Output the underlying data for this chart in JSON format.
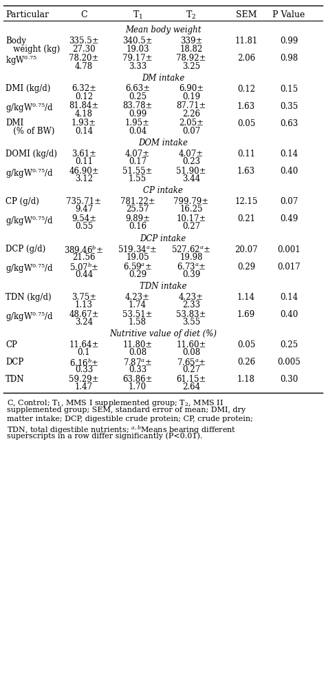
{
  "headers": [
    "Particular",
    "C",
    "T$_1$",
    "T$_2$",
    "SEM",
    "P Value"
  ],
  "sections": [
    {
      "section_title": "Mean body weight",
      "rows": [
        {
          "col0": [
            "Body",
            "   weight (kg)"
          ],
          "col1": [
            "335.5±",
            "27.30"
          ],
          "col2": [
            "340.5±",
            "19.03"
          ],
          "col3": [
            "339±",
            "18.82"
          ],
          "col4": "11.81",
          "col5": "0.99"
        },
        {
          "col0": [
            "kgW$^{0.75}$",
            ""
          ],
          "col1": [
            "78.20±",
            "4.78"
          ],
          "col2": [
            "79.17±",
            "3.33"
          ],
          "col3": [
            "78.92±",
            "3.25"
          ],
          "col4": "2.06",
          "col5": "0.98"
        }
      ]
    },
    {
      "section_title": "DM intake",
      "rows": [
        {
          "col0": [
            "DMI (kg/d)",
            ""
          ],
          "col1": [
            "6.32±",
            "0.12"
          ],
          "col2": [
            "6.63±",
            "0.25"
          ],
          "col3": [
            "6.90±",
            "0.19"
          ],
          "col4": "0.12",
          "col5": "0.15"
        },
        {
          "col0": [
            "g/kgW$^{0.75}$/d",
            ""
          ],
          "col1": [
            "81.84±",
            "4.18"
          ],
          "col2": [
            "83.78±",
            "0.99"
          ],
          "col3": [
            "87.71±",
            "2.26"
          ],
          "col4": "1.63",
          "col5": "0.35"
        },
        {
          "col0": [
            "DMI",
            "   (% of BW)"
          ],
          "col1": [
            "1.93±",
            "0.14"
          ],
          "col2": [
            "1.95±",
            "0.04"
          ],
          "col3": [
            "2.05±",
            "0.07"
          ],
          "col4": "0.05",
          "col5": "0.63"
        }
      ]
    },
    {
      "section_title": "DOM intake",
      "rows": [
        {
          "col0": [
            "DOMI (kg/d)",
            ""
          ],
          "col1": [
            "3.61±",
            "0.11"
          ],
          "col2": [
            "4.07±",
            "0.17"
          ],
          "col3": [
            "4.07±",
            "0.23"
          ],
          "col4": "0.11",
          "col5": "0.14"
        },
        {
          "col0": [
            "g/kgW$^{0.75}$/d",
            ""
          ],
          "col1": [
            "46.90±",
            "3.12"
          ],
          "col2": [
            "51.55±",
            "1.55"
          ],
          "col3": [
            "51.90±",
            "3.44"
          ],
          "col4": "1.63",
          "col5": "0.40"
        }
      ]
    },
    {
      "section_title": "CP intake",
      "rows": [
        {
          "col0": [
            "CP (g/d)",
            ""
          ],
          "col1": [
            "735.71±",
            "9.47"
          ],
          "col2": [
            "781.22±",
            "25.57"
          ],
          "col3": [
            "799.79±",
            "16.25"
          ],
          "col4": "12.15",
          "col5": "0.07"
        },
        {
          "col0": [
            "g/kgW$^{0.75}$/d",
            ""
          ],
          "col1": [
            "9.54±",
            "0.55"
          ],
          "col2": [
            "9.89±",
            "0.16"
          ],
          "col3": [
            "10.17±",
            "0.27"
          ],
          "col4": "0.21",
          "col5": "0.49"
        }
      ]
    },
    {
      "section_title": "DCP intake",
      "rows": [
        {
          "col0": [
            "DCP (g/d)",
            ""
          ],
          "col1": [
            "389.46$^b$±",
            "21.56"
          ],
          "col2": [
            "519.34$^a$±",
            "19.05"
          ],
          "col3": [
            "527.62$^a$±",
            "19.98"
          ],
          "col4": "20.07",
          "col5": "0.001"
        },
        {
          "col0": [
            "g/kgW$^{0.75}$/d",
            ""
          ],
          "col1": [
            "5.07$^b$±",
            "0.44"
          ],
          "col2": [
            "6.59$^a$±",
            "0.29"
          ],
          "col3": [
            "6.73$^a$±",
            "0.39"
          ],
          "col4": "0.29",
          "col5": "0.017"
        }
      ]
    },
    {
      "section_title": "TDN intake",
      "rows": [
        {
          "col0": [
            "TDN (kg/d)",
            ""
          ],
          "col1": [
            "3.75±",
            "1.13"
          ],
          "col2": [
            "4.23±",
            "1.74"
          ],
          "col3": [
            "4.23±",
            "2.33"
          ],
          "col4": "1.14",
          "col5": "0.14"
        },
        {
          "col0": [
            "g/kgW$^{0.75}$/d",
            ""
          ],
          "col1": [
            "48.67±",
            "3.24"
          ],
          "col2": [
            "53.51±",
            "1.58"
          ],
          "col3": [
            "53.83±",
            "3.55"
          ],
          "col4": "1.69",
          "col5": "0.40"
        }
      ]
    },
    {
      "section_title": "Nutritive value of diet (%)",
      "rows": [
        {
          "col0": [
            "CP",
            ""
          ],
          "col1": [
            "11.64±",
            "0.1"
          ],
          "col2": [
            "11.80±",
            "0.08"
          ],
          "col3": [
            "11.60±",
            "0.08"
          ],
          "col4": "0.05",
          "col5": "0.25"
        },
        {
          "col0": [
            "DCP",
            ""
          ],
          "col1": [
            "6.16$^b$±",
            "0.33"
          ],
          "col2": [
            "7.87$^a$±",
            "0.33"
          ],
          "col3": [
            "7.65$^a$±",
            "0.27"
          ],
          "col4": "0.26",
          "col5": "0.005"
        },
        {
          "col0": [
            "TDN",
            ""
          ],
          "col1": [
            "59.29±",
            "1.47"
          ],
          "col2": [
            "63.86±",
            "1.70"
          ],
          "col3": [
            "61.15±",
            "2.64"
          ],
          "col4": "1.18",
          "col5": "0.30"
        }
      ]
    }
  ],
  "footnote_lines": [
    "C, Control; T$_1$, MMS I supplemented group; T$_2$, MMS II",
    "supplemented group; SEM, standard error of mean; DMI, dry",
    "matter intake; DCP, digestible crude protein; CP, crude protein;",
    "TDN, total digestible nutrients; $^{a,b}$Means bearing different",
    "superscripts in a row differ significantly (P<0.01)."
  ],
  "bg_color": "#ffffff",
  "text_color": "#000000",
  "font_size": 8.5,
  "header_font_size": 9.0
}
